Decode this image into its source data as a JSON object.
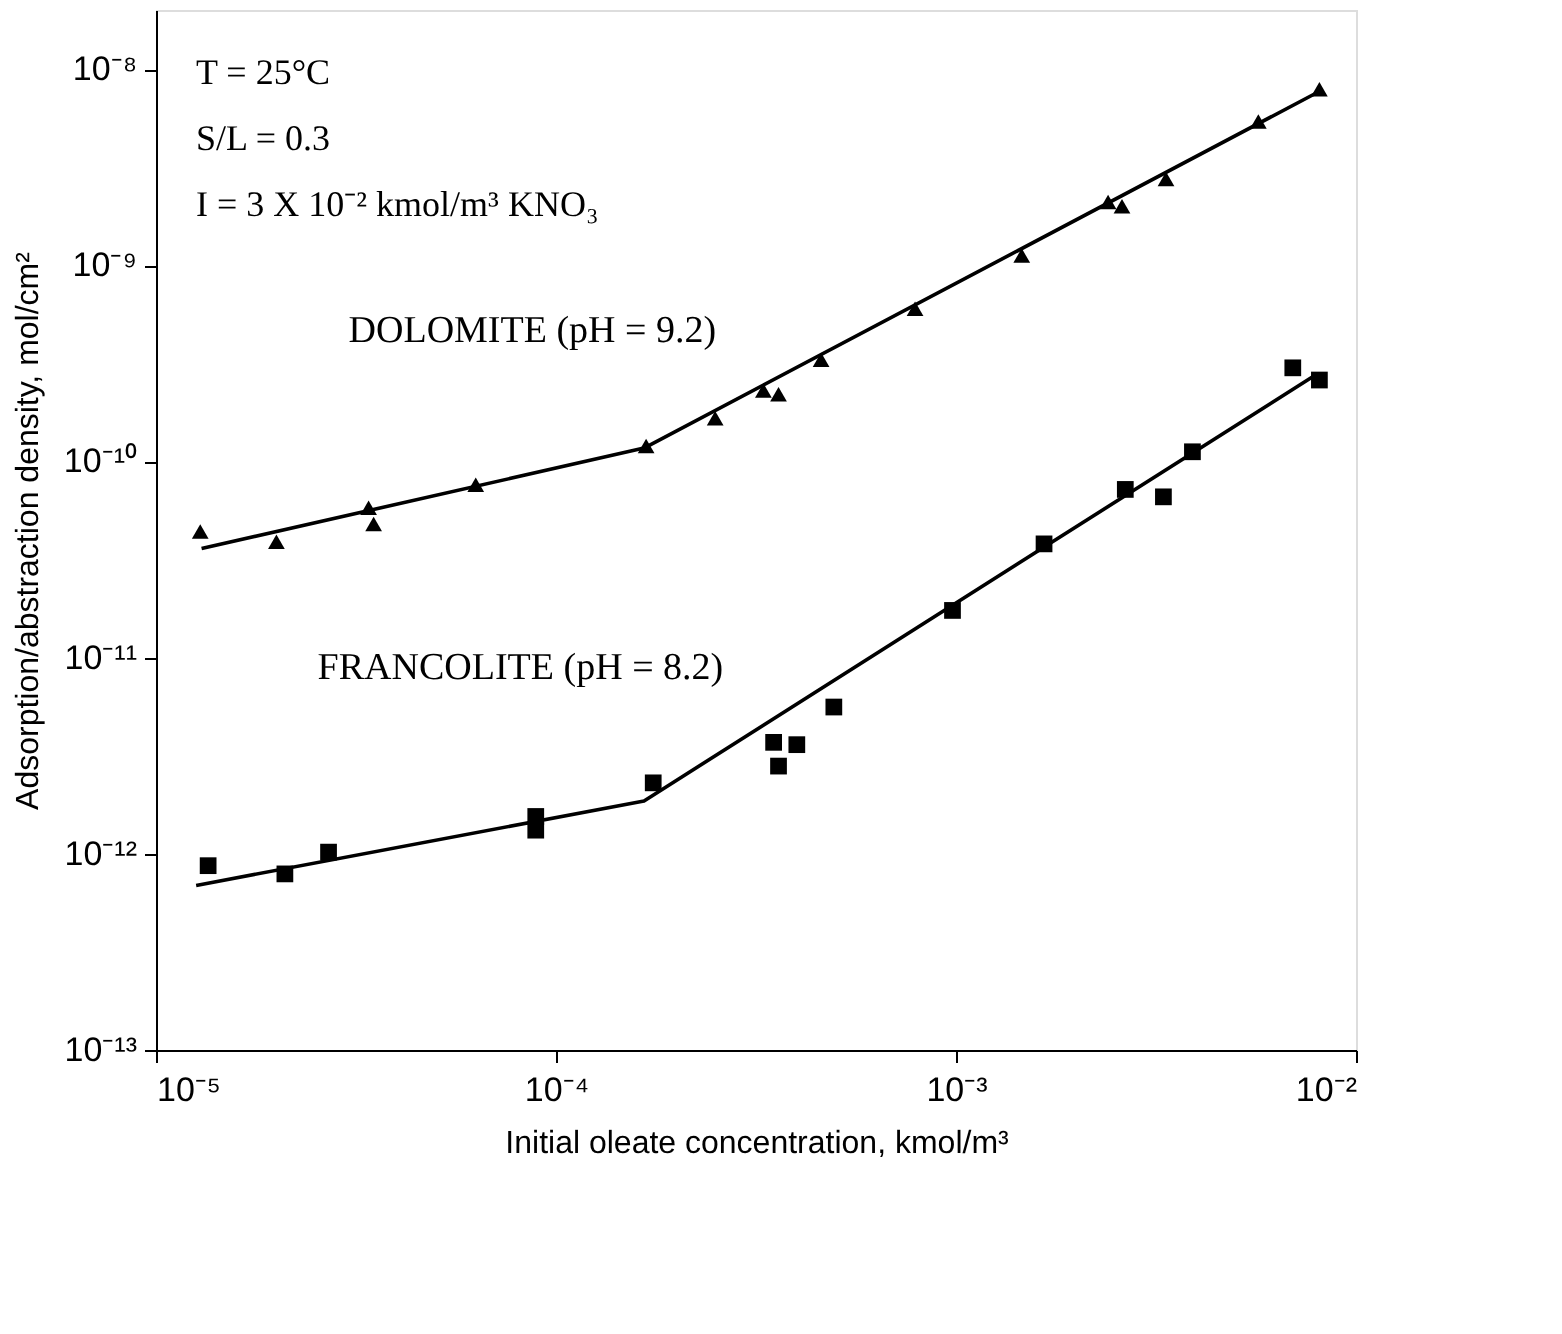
{
  "chart_data": {
    "type": "scatter",
    "xlabel": "Initial oleate concentration, kmol/m³",
    "ylabel": "Adsorption/abstraction density, mol/cm²",
    "annotations": [
      "T = 25°C",
      "S/L = 0.3",
      "I = 3 X 10⁻² kmol/m³ KNO₃"
    ],
    "log": "xy",
    "grid": false,
    "legend": false,
    "xlim": [
      1e-05,
      0.01
    ],
    "xticks": [
      {
        "value": 1e-05,
        "label": "10⁻⁵"
      },
      {
        "value": 0.0001,
        "label": "10⁻⁴"
      },
      {
        "value": 0.001,
        "label": "10⁻³"
      },
      {
        "value": 0.01,
        "label": "10⁻²"
      }
    ],
    "ylim": [
      1e-13,
      2e-08
    ],
    "yticks": [
      {
        "value": 1e-13,
        "label": "10⁻¹³"
      },
      {
        "value": 1e-12,
        "label": "10⁻¹²"
      },
      {
        "value": 1e-11,
        "label": "10⁻¹¹"
      },
      {
        "value": 1e-10,
        "label": "10⁻¹⁰"
      },
      {
        "value": 1e-09,
        "label": "10⁻⁹"
      },
      {
        "value": 1e-08,
        "label": "10⁻⁸"
      }
    ],
    "series": [
      {
        "name": "DOLOMITE (pH = 9.2)",
        "marker": "triangle",
        "color": "#000000",
        "x": [
          1.29e-05,
          2e-05,
          3.4e-05,
          3.5e-05,
          6.3e-05,
          0.000168,
          0.00025,
          0.00033,
          0.00036,
          0.00046,
          0.00079,
          0.00146,
          0.0024,
          0.0026,
          0.00335,
          0.0057,
          0.0081
        ],
        "values": [
          4.4e-11,
          3.9e-11,
          5.8e-11,
          4.8e-11,
          7.6e-11,
          1.2e-10,
          1.66e-10,
          2.3e-10,
          2.2e-10,
          3.3e-10,
          6e-10,
          1.12e-09,
          2.1e-09,
          2e-09,
          2.75e-09,
          5.4e-09,
          7.9e-09
        ]
      },
      {
        "type": "line",
        "marker": "none",
        "line_style": "solid",
        "color": "#000000",
        "x": [
          1.3e-05,
          0.000166,
          0.0082
        ],
        "values": [
          3.6e-11,
          1.17e-10,
          7.8e-09
        ]
      },
      {
        "name": "FRANCOLITE (pH = 8.2)",
        "marker": "square",
        "color": "#000000",
        "x": [
          1.35e-05,
          2.1e-05,
          2.7e-05,
          8.9e-05,
          8.9e-05,
          0.000175,
          0.00035,
          0.00036,
          0.0004,
          0.000495,
          0.00098,
          0.00166,
          0.00265,
          0.0033,
          0.0039,
          0.00695,
          0.0081
        ],
        "values": [
          8.7e-13,
          7.9e-13,
          1.02e-12,
          1.55e-12,
          1.32e-12,
          2.3e-12,
          3.7e-12,
          2.8e-12,
          3.6e-12,
          5.6e-12,
          1.74e-11,
          3.8e-11,
          7.2e-11,
          6.6e-11,
          1.12e-10,
          3e-10,
          2.6e-10
        ]
      },
      {
        "type": "line",
        "marker": "none",
        "line_style": "solid",
        "color": "#000000",
        "x": [
          1.26e-05,
          0.000166,
          0.0079
        ],
        "values": [
          6.9e-13,
          1.86e-12,
          2.75e-10
        ]
      }
    ]
  }
}
